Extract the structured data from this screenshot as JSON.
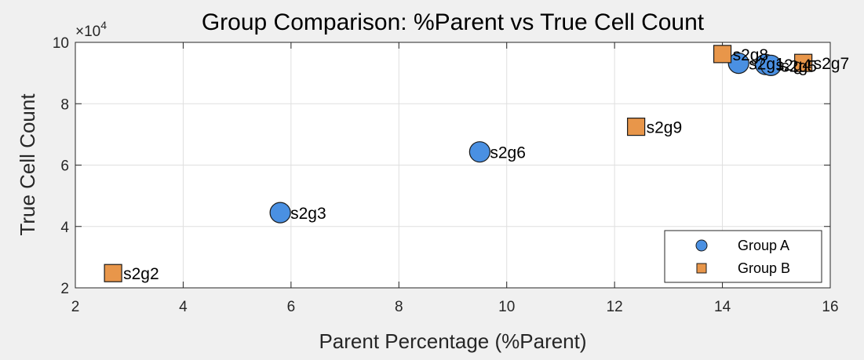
{
  "chart_data": {
    "type": "scatter",
    "title": "Group Comparison: %Parent vs True Cell Count",
    "xlabel": "Parent Percentage (%Parent)",
    "ylabel": "True Cell Count",
    "xlim": [
      2,
      16
    ],
    "ylim": [
      20000,
      100000
    ],
    "x_ticks": [
      2,
      4,
      6,
      8,
      10,
      12,
      14,
      16
    ],
    "y_ticks": [
      2,
      4,
      6,
      8,
      10
    ],
    "y_tick_labels": [
      "2",
      "4",
      "6",
      "8",
      "10"
    ],
    "y_exponent": {
      "base": "×10",
      "power": "4"
    },
    "grid": true,
    "legend_position": "bottom-right",
    "series": [
      {
        "name": "Group A",
        "marker": "circle",
        "color": "#4a90e2",
        "points": [
          {
            "label": "s2g3",
            "x": 5.8,
            "y": 44500
          },
          {
            "label": "s2g6",
            "x": 9.5,
            "y": 64300
          },
          {
            "label": "s2g1",
            "x": 14.3,
            "y": 93200
          },
          {
            "label": "s2g4",
            "x": 14.8,
            "y": 92800
          },
          {
            "label": "s2g5",
            "x": 14.9,
            "y": 92500
          }
        ]
      },
      {
        "name": "Group B",
        "marker": "square",
        "color": "#e8964a",
        "points": [
          {
            "label": "s2g2",
            "x": 2.7,
            "y": 24800
          },
          {
            "label": "s2g9",
            "x": 12.4,
            "y": 72500
          },
          {
            "label": "s2g8",
            "x": 14.0,
            "y": 96200
          },
          {
            "label": "s2g7",
            "x": 15.5,
            "y": 93300
          }
        ]
      }
    ]
  }
}
